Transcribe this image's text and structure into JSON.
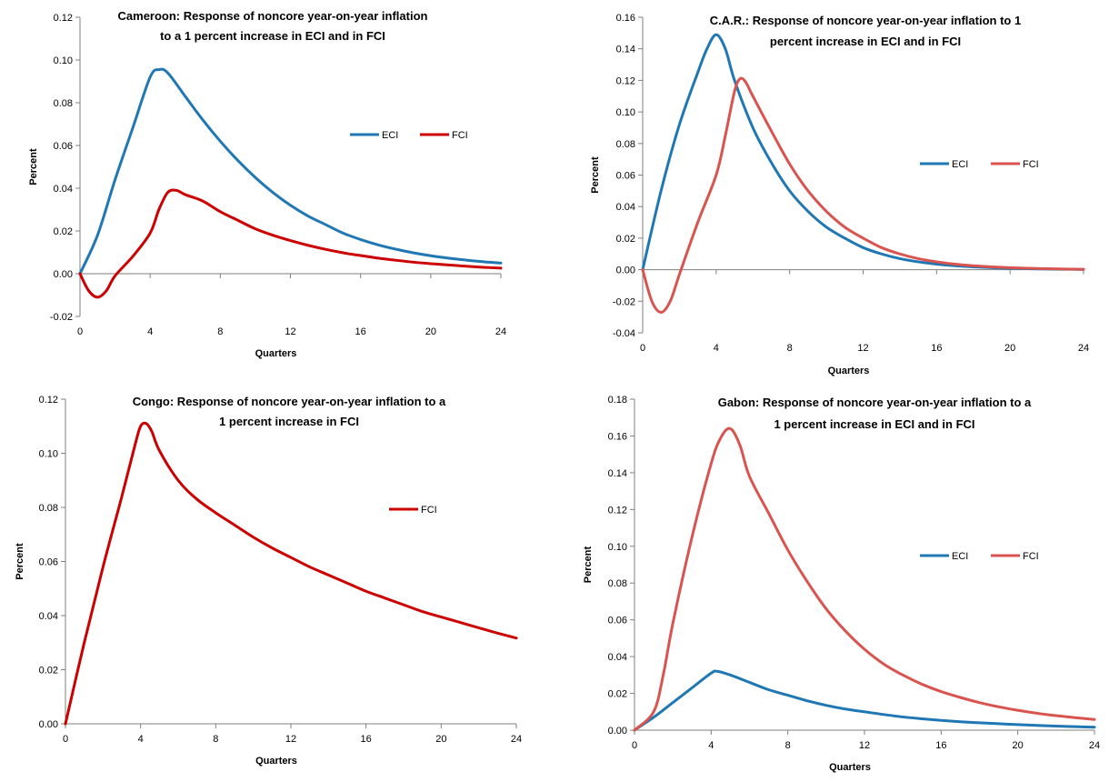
{
  "chart_data": [
    {
      "type": "line",
      "title_lines": [
        "Cameroon: Response of noncore year-on-year inflation",
        "to a 1 percent increase in ECI and in FCI"
      ],
      "xlabel": "Quarters",
      "ylabel": "Percent",
      "xlim": [
        0,
        24
      ],
      "ylim": [
        -0.02,
        0.12
      ],
      "xticks": [
        0,
        4,
        8,
        12,
        16,
        20,
        24
      ],
      "yticks": [
        -0.02,
        0.0,
        0.02,
        0.04,
        0.06,
        0.08,
        0.1,
        0.12
      ],
      "ytick_labels": [
        "-0.02",
        "0.00",
        "0.02",
        "0.04",
        "0.06",
        "0.08",
        "0.10",
        "0.12"
      ],
      "legend": "right",
      "series": [
        {
          "name": "ECI",
          "color": "#1f77b4",
          "x": [
            0,
            1,
            2,
            3,
            4,
            4.5,
            5,
            6,
            7,
            8,
            9,
            10,
            11,
            12,
            13,
            14,
            15,
            16,
            17,
            18,
            19,
            20,
            21,
            22,
            23,
            24
          ],
          "y": [
            0.0,
            0.018,
            0.044,
            0.068,
            0.092,
            0.0955,
            0.094,
            0.083,
            0.072,
            0.062,
            0.053,
            0.045,
            0.038,
            0.032,
            0.027,
            0.023,
            0.019,
            0.016,
            0.0135,
            0.0115,
            0.0098,
            0.0084,
            0.0073,
            0.0064,
            0.0056,
            0.005
          ]
        },
        {
          "name": "FCI",
          "color": "#cc0000",
          "x": [
            0,
            0.5,
            1,
            1.5,
            2,
            3,
            4,
            4.5,
            5,
            5.5,
            6,
            7,
            8,
            9,
            10,
            11,
            12,
            13,
            14,
            15,
            16,
            17,
            18,
            19,
            20,
            21,
            22,
            23,
            24
          ],
          "y": [
            0.0,
            -0.008,
            -0.011,
            -0.008,
            -0.001,
            0.008,
            0.019,
            0.03,
            0.038,
            0.039,
            0.037,
            0.034,
            0.029,
            0.025,
            0.021,
            0.018,
            0.0155,
            0.0133,
            0.0114,
            0.0098,
            0.0085,
            0.0073,
            0.0063,
            0.0054,
            0.0047,
            0.0041,
            0.0035,
            0.003,
            0.0026
          ]
        }
      ]
    },
    {
      "type": "line",
      "title_lines": [
        "C.A.R.: Response of noncore year-on-year inflation to 1",
        "percent increase in ECI and in FCI"
      ],
      "xlabel": "Quarters",
      "ylabel": "Percent",
      "xlim": [
        0,
        24
      ],
      "ylim": [
        -0.04,
        0.16
      ],
      "xticks": [
        0,
        4,
        8,
        12,
        16,
        20,
        24
      ],
      "yticks": [
        -0.04,
        -0.02,
        0.0,
        0.02,
        0.04,
        0.06,
        0.08,
        0.1,
        0.12,
        0.14,
        0.16
      ],
      "ytick_labels": [
        "-0.04",
        "-0.02",
        "0.00",
        "0.02",
        "0.04",
        "0.06",
        "0.08",
        "0.10",
        "0.12",
        "0.14",
        "0.16"
      ],
      "legend": "right",
      "series": [
        {
          "name": "ECI",
          "color": "#1f77b4",
          "x": [
            0,
            1,
            2,
            3,
            3.5,
            4,
            4.5,
            5,
            6,
            7,
            8,
            9,
            10,
            11,
            12,
            13,
            14,
            15,
            16,
            17,
            18,
            19,
            20,
            21,
            22,
            23,
            24
          ],
          "y": [
            0.0,
            0.05,
            0.092,
            0.125,
            0.14,
            0.149,
            0.14,
            0.12,
            0.09,
            0.068,
            0.05,
            0.037,
            0.027,
            0.02,
            0.014,
            0.01,
            0.007,
            0.005,
            0.0035,
            0.0025,
            0.0018,
            0.0013,
            0.0009,
            0.0006,
            0.0004,
            0.0003,
            0.0002
          ]
        },
        {
          "name": "FCI",
          "color": "#d9534f",
          "x": [
            0,
            0.5,
            1,
            1.5,
            2,
            3,
            4,
            4.5,
            5,
            5.3,
            5.6,
            6,
            7,
            8,
            9,
            10,
            11,
            12,
            13,
            14,
            15,
            16,
            17,
            18,
            19,
            20,
            21,
            22,
            23,
            24
          ],
          "y": [
            0.0,
            -0.02,
            -0.027,
            -0.02,
            -0.003,
            0.03,
            0.06,
            0.085,
            0.113,
            0.121,
            0.119,
            0.11,
            0.088,
            0.067,
            0.05,
            0.037,
            0.027,
            0.02,
            0.014,
            0.01,
            0.007,
            0.005,
            0.0035,
            0.0025,
            0.0018,
            0.0013,
            0.0009,
            0.0006,
            0.0004,
            0.0002
          ]
        }
      ]
    },
    {
      "type": "line",
      "title_lines": [
        "Congo: Response of noncore year-on-year inflation to a",
        "1 percent increase in FCI"
      ],
      "xlabel": "Quarters",
      "ylabel": "Percent",
      "xlim": [
        0,
        24
      ],
      "ylim": [
        0.0,
        0.12
      ],
      "xticks": [
        0,
        4,
        8,
        12,
        16,
        20,
        24
      ],
      "yticks": [
        0.0,
        0.02,
        0.04,
        0.06,
        0.08,
        0.1,
        0.12
      ],
      "ytick_labels": [
        "0.00",
        "0.02",
        "0.04",
        "0.06",
        "0.08",
        "0.10",
        "0.12"
      ],
      "legend": "right",
      "series": [
        {
          "name": "FCI",
          "color": "#cc0000",
          "x": [
            0,
            1,
            2,
            3,
            3.7,
            4,
            4.3,
            4.6,
            5,
            6,
            7,
            8,
            9,
            10,
            11,
            12,
            13,
            14,
            15,
            16,
            17,
            18,
            19,
            20,
            21,
            22,
            23,
            24
          ],
          "y": [
            0.0,
            0.03,
            0.058,
            0.084,
            0.103,
            0.11,
            0.111,
            0.108,
            0.101,
            0.09,
            0.083,
            0.078,
            0.0735,
            0.069,
            0.065,
            0.0615,
            0.058,
            0.055,
            0.052,
            0.049,
            0.0465,
            0.044,
            0.0415,
            0.0395,
            0.0375,
            0.0355,
            0.0335,
            0.0317
          ]
        }
      ]
    },
    {
      "type": "line",
      "title_lines": [
        "Gabon: Response of noncore year-on-year inflation to a",
        "1 percent increase in ECI and in FCI"
      ],
      "xlabel": "Quarters",
      "ylabel": "Percent",
      "xlim": [
        0,
        24
      ],
      "ylim": [
        0.0,
        0.18
      ],
      "xticks": [
        0,
        4,
        8,
        12,
        16,
        20,
        24
      ],
      "yticks": [
        0.0,
        0.02,
        0.04,
        0.06,
        0.08,
        0.1,
        0.12,
        0.14,
        0.16,
        0.18
      ],
      "ytick_labels": [
        "0.00",
        "0.02",
        "0.04",
        "0.06",
        "0.08",
        "0.10",
        "0.12",
        "0.14",
        "0.16",
        "0.18"
      ],
      "legend": "right",
      "series": [
        {
          "name": "ECI",
          "color": "#1f77b4",
          "x": [
            0,
            1,
            2,
            3,
            4,
            4.3,
            5,
            6,
            7,
            8,
            9,
            10,
            11,
            12,
            13,
            14,
            15,
            16,
            17,
            18,
            19,
            20,
            21,
            22,
            23,
            24
          ],
          "y": [
            0.0,
            0.007,
            0.015,
            0.023,
            0.031,
            0.032,
            0.03,
            0.026,
            0.022,
            0.019,
            0.016,
            0.0135,
            0.0115,
            0.01,
            0.0085,
            0.0072,
            0.0062,
            0.0053,
            0.0046,
            0.004,
            0.0035,
            0.003,
            0.0026,
            0.0022,
            0.0019,
            0.0016
          ]
        },
        {
          "name": "FCI",
          "color": "#d9534f",
          "x": [
            0,
            1,
            1.5,
            2,
            3,
            4,
            4.5,
            5,
            5.5,
            6,
            7,
            8,
            9,
            10,
            11,
            12,
            13,
            14,
            15,
            16,
            17,
            18,
            19,
            20,
            21,
            22,
            23,
            24
          ],
          "y": [
            0.0,
            0.01,
            0.03,
            0.058,
            0.105,
            0.145,
            0.159,
            0.164,
            0.155,
            0.138,
            0.118,
            0.098,
            0.081,
            0.066,
            0.054,
            0.044,
            0.036,
            0.03,
            0.025,
            0.021,
            0.0178,
            0.015,
            0.0127,
            0.0108,
            0.0092,
            0.0079,
            0.0068,
            0.0058
          ]
        }
      ]
    }
  ]
}
